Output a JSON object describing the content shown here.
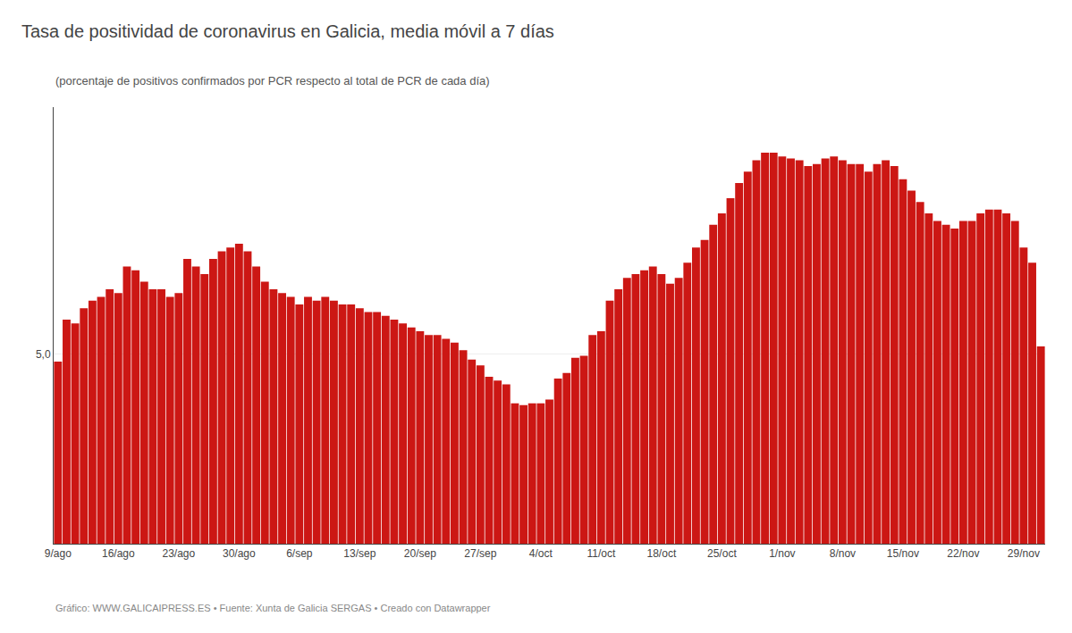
{
  "chart_data": {
    "type": "bar",
    "title": "Tasa de positividad de coronavirus en Galicia, media móvil a 7 días",
    "subtitle": "(porcentaje de positivos confirmados por PCR respecto al total de PCR de cada día)",
    "annotations": [
      "Gráfico: WWW.GALICAIPRESS.ES • Fuente: Xunta de Galicia SERGAS • Creado con Datawrapper"
    ],
    "categories": [
      "9/ago",
      null,
      null,
      null,
      null,
      null,
      null,
      "16/ago",
      null,
      null,
      null,
      null,
      null,
      null,
      "23/ago",
      null,
      null,
      null,
      null,
      null,
      null,
      "30/ago",
      null,
      null,
      null,
      null,
      null,
      null,
      "6/sep",
      null,
      null,
      null,
      null,
      null,
      null,
      "13/sep",
      null,
      null,
      null,
      null,
      null,
      null,
      "20/sep",
      null,
      null,
      null,
      null,
      null,
      null,
      "27/sep",
      null,
      null,
      null,
      null,
      null,
      null,
      "4/oct",
      null,
      null,
      null,
      null,
      null,
      null,
      "11/oct",
      null,
      null,
      null,
      null,
      null,
      null,
      "18/oct",
      null,
      null,
      null,
      null,
      null,
      null,
      "25/oct",
      null,
      null,
      null,
      null,
      null,
      null,
      "1/nov",
      null,
      null,
      null,
      null,
      null,
      null,
      "8/nov",
      null,
      null,
      null,
      null,
      null,
      null,
      "15/nov",
      null,
      null,
      null,
      null,
      null,
      null,
      "22/nov",
      null,
      null,
      null,
      null,
      null,
      null,
      "29/nov",
      null,
      null
    ],
    "values": [
      4.8,
      5.9,
      5.8,
      6.2,
      6.4,
      6.5,
      6.7,
      6.6,
      7.3,
      7.2,
      6.9,
      6.7,
      6.7,
      6.5,
      6.6,
      7.5,
      7.3,
      7.1,
      7.5,
      7.7,
      7.8,
      7.9,
      7.7,
      7.3,
      6.9,
      6.7,
      6.6,
      6.5,
      6.3,
      6.5,
      6.4,
      6.5,
      6.4,
      6.3,
      6.3,
      6.2,
      6.1,
      6.1,
      6.0,
      5.9,
      5.8,
      5.7,
      5.6,
      5.5,
      5.5,
      5.4,
      5.3,
      5.1,
      4.85,
      4.7,
      4.4,
      4.3,
      4.2,
      3.7,
      3.65,
      3.7,
      3.7,
      3.8,
      4.35,
      4.5,
      4.9,
      4.95,
      5.5,
      5.6,
      6.4,
      6.7,
      7.0,
      7.1,
      7.2,
      7.3,
      7.1,
      6.85,
      7.0,
      7.4,
      7.8,
      8.0,
      8.4,
      8.7,
      9.1,
      9.5,
      9.8,
      10.1,
      10.3,
      10.3,
      10.2,
      10.15,
      10.1,
      9.95,
      10.0,
      10.15,
      10.2,
      10.1,
      10.0,
      10.0,
      9.8,
      10.0,
      10.1,
      9.95,
      9.6,
      9.3,
      9.0,
      8.7,
      8.5,
      8.4,
      8.3,
      8.5,
      8.5,
      8.7,
      8.8,
      8.8,
      8.7,
      8.5,
      7.8,
      7.4,
      5.2
    ],
    "color": "#cc1714",
    "ylim": [
      0,
      11.5
    ],
    "yticks": [
      {
        "value": 5.0,
        "label": "5,0"
      }
    ],
    "grid": true
  }
}
